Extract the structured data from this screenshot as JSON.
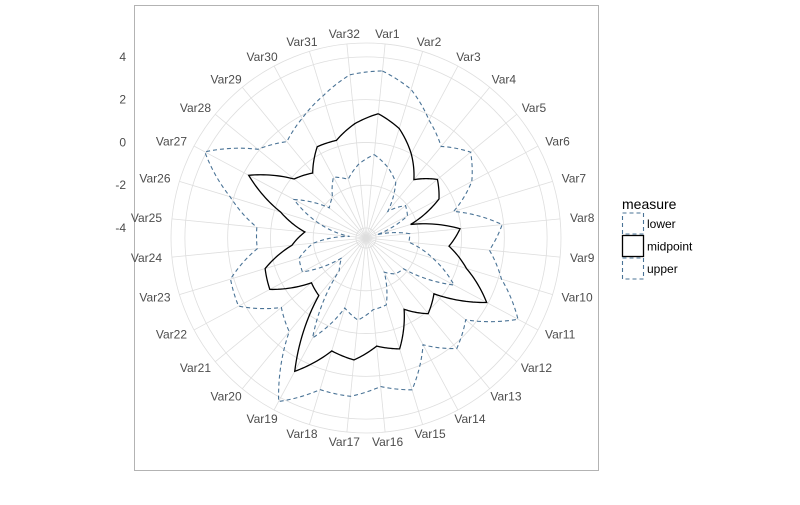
{
  "chart_data": {
    "type": "radar",
    "title": "",
    "xlabel": "",
    "ylabel": "",
    "categories": [
      "Var1",
      "Var2",
      "Var3",
      "Var4",
      "Var5",
      "Var6",
      "Var7",
      "Var8",
      "Var9",
      "Var10",
      "Var11",
      "Var12",
      "Var13",
      "Var14",
      "Var15",
      "Var16",
      "Var17",
      "Var18",
      "Var19",
      "Var20",
      "Var21",
      "Var22",
      "Var23",
      "Var24",
      "Var25",
      "Var26",
      "Var27",
      "Var28",
      "Var29",
      "Var30",
      "Var31",
      "Var32"
    ],
    "radial_ticks": [
      4,
      2,
      0,
      -2,
      -4
    ],
    "radial_tick_labels": [
      "4",
      "2",
      "0",
      "-2",
      "-4"
    ],
    "rlim": [
      -4.47,
      4.65
    ],
    "grid": true,
    "legend": {
      "title": "measure",
      "position": "right"
    },
    "series": [
      {
        "name": "lower",
        "color": "#4a7396",
        "dash": true,
        "values": [
          -0.55,
          -1.0,
          -1.52,
          -2.86,
          -2.08,
          -2.27,
          -3.95,
          -2.41,
          -2.46,
          -1.2,
          0.2,
          -2.2,
          -2.3,
          -2.66,
          -1.2,
          -1.1,
          -0.61,
          -1.05,
          0.83,
          -2.5,
          -3.0,
          -1.1,
          -1.2,
          -2.0,
          -3.7,
          -2.23,
          -0.65,
          -2.25,
          -2.0,
          -1.24,
          -1.6,
          -1.0
        ]
      },
      {
        "name": "midpoint",
        "color": "#000000",
        "dash": false,
        "values": [
          1.37,
          0.88,
          0.01,
          -0.94,
          -0.15,
          -0.6,
          -2.29,
          -0.05,
          -0.57,
          0.44,
          1.93,
          -0.36,
          0.11,
          -0.69,
          0.95,
          0.61,
          1.26,
          1.05,
          2.6,
          -0.99,
          -1.17,
          0.63,
          0.46,
          -0.99,
          -1.6,
          -0.3,
          1.75,
          -0.12,
          -0.54,
          0.37,
          0.3,
          0.9
        ]
      },
      {
        "name": "upper",
        "color": "#4a7396",
        "dash": true,
        "values": [
          3.38,
          2.79,
          1.78,
          1.07,
          1.86,
          1.14,
          -0.19,
          1.93,
          1.33,
          2.15,
          3.59,
          1.56,
          2.22,
          1.19,
          2.95,
          2.51,
          2.97,
          2.94,
          4.2,
          1.19,
          0.65,
          2.29,
          2.15,
          0.64,
          0.66,
          2.17,
          4.08,
          2.07,
          1.36,
          1.87,
          2.47,
          3.2
        ]
      }
    ]
  }
}
